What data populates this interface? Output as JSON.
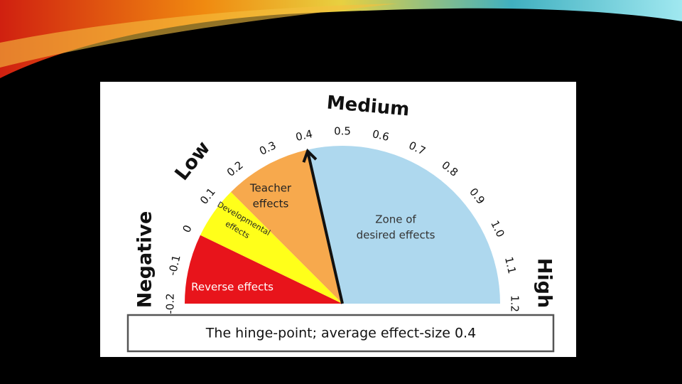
{
  "chart_data": {
    "type": "gauge",
    "ticks": [
      -0.2,
      -0.1,
      0,
      0.1,
      0.2,
      0.3,
      0.4,
      0.5,
      0.6,
      0.7,
      0.8,
      0.9,
      {
        "value": 1,
        "label": "1.0"
      },
      1.1,
      1.2
    ],
    "range": [
      -0.2,
      1.2
    ],
    "zones": [
      {
        "name": "Reverse effects",
        "lines": [
          "Reverse effects"
        ],
        "from": -0.2,
        "to": 0,
        "color": "#e8141b"
      },
      {
        "name": "Developmental effects",
        "lines": [
          "Developmental",
          "effects"
        ],
        "from": 0,
        "to": 0.15,
        "color": "#ffff1a"
      },
      {
        "name": "Teacher effects",
        "lines": [
          "Teacher",
          "effects"
        ],
        "from": 0.15,
        "to": 0.4,
        "color": "#f7a94d"
      },
      {
        "name": "Zone of desired effects",
        "lines": [
          "Zone of",
          "desired effects"
        ],
        "from": 0.4,
        "to": 1.2,
        "color": "#aed8ee"
      }
    ],
    "levels": [
      "Negative",
      "Low",
      "Medium",
      "High"
    ],
    "needle": 0.4,
    "caption": "The hinge-point; average effect-size 0.4"
  }
}
